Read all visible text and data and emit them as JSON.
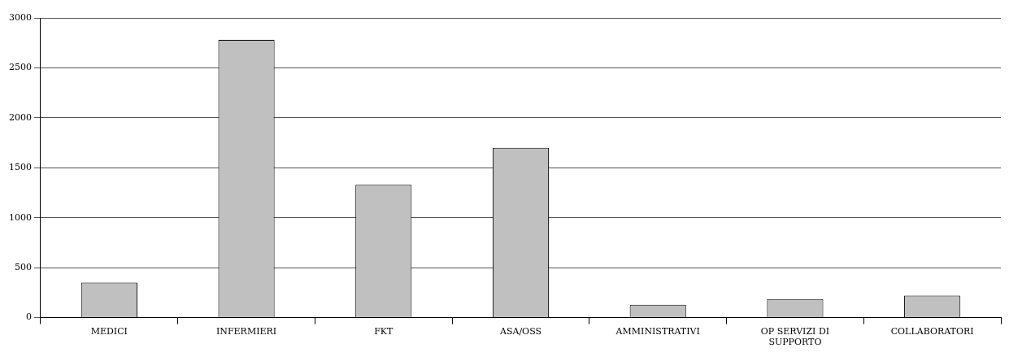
{
  "chart_data": {
    "type": "bar",
    "categories": [
      "MEDICI",
      "INFERMIERI",
      "FKT",
      "ASA/OSS",
      "AMMINISTRATIVI",
      "OP SERVIZI DI SUPPORTO",
      "COLLABORATORI"
    ],
    "values": [
      350,
      2780,
      1330,
      1700,
      130,
      185,
      220
    ],
    "color": "#c0c0c0",
    "ylim": [
      0,
      3000
    ],
    "yticks": [
      0,
      500,
      1000,
      1500,
      2000,
      2500,
      3000
    ],
    "grid": "y",
    "legend": false
  }
}
